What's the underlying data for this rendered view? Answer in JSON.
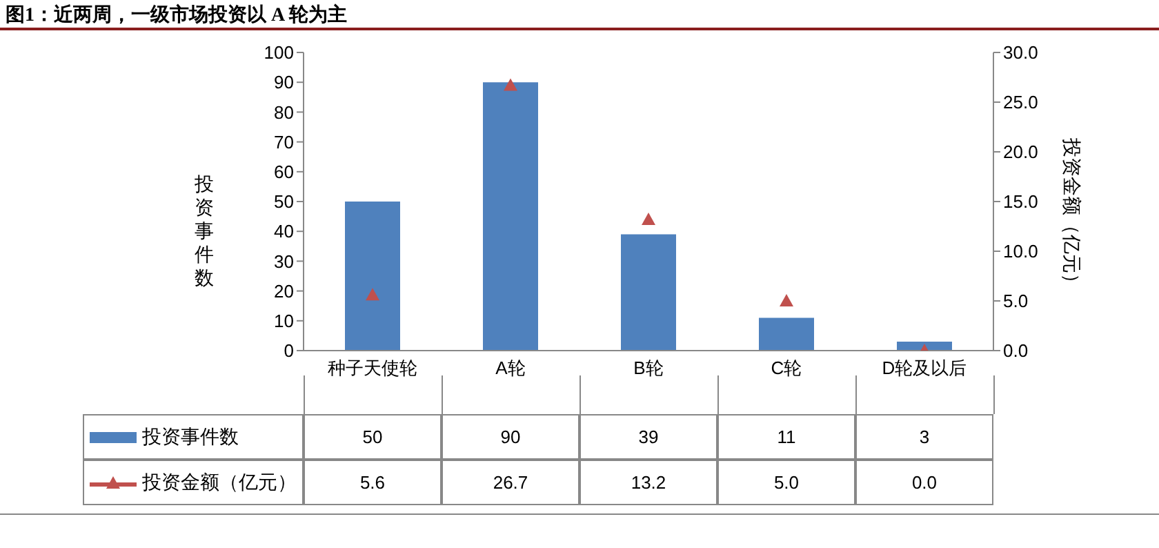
{
  "chart_data": {
    "type": "bar",
    "title": "图1：近两周，一级市场投资以 A 轮为主",
    "ylabel": "投资事件数",
    "y2label": "投资金额（亿元）",
    "categories": [
      "种子天使轮",
      "A轮",
      "B轮",
      "C轮",
      "D轮及以后"
    ],
    "series": [
      {
        "name": "投资事件数",
        "color": "#4f81bd",
        "values": [
          50,
          90,
          39,
          11,
          3
        ],
        "value_labels": [
          "50",
          "90",
          "39",
          "11",
          "3"
        ]
      },
      {
        "name": "投资金额（亿元）",
        "type": "scatter",
        "axis": "y2",
        "marker": "triangle",
        "color": "#c0504d",
        "values": [
          5.6,
          26.7,
          13.2,
          5.0,
          0.0
        ],
        "value_labels": [
          "5.6",
          "26.7",
          "13.2",
          "5.0",
          "0.0"
        ]
      }
    ],
    "ylim": [
      0,
      100
    ],
    "yticks": [
      0,
      10,
      20,
      30,
      40,
      50,
      60,
      70,
      80,
      90,
      100
    ],
    "y2lim": [
      0,
      30
    ],
    "y2ticks": [
      {
        "value": 0,
        "label": "0.0"
      },
      {
        "value": 5,
        "label": "5.0"
      },
      {
        "value": 10,
        "label": "10.0"
      },
      {
        "value": 15,
        "label": "15.0"
      },
      {
        "value": 20,
        "label": "20.0"
      },
      {
        "value": 25,
        "label": "25.0"
      },
      {
        "value": 30,
        "label": "30.0"
      }
    ],
    "grid": false,
    "legend": "bottom"
  }
}
